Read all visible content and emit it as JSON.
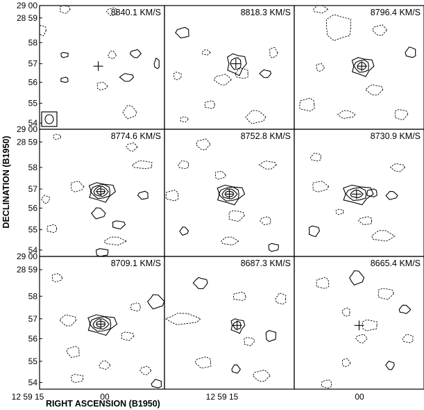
{
  "figure": {
    "ylabel": "DECLINATION (B1950)",
    "xlabel": "RIGHT ASCENSION (B1950)",
    "y_ticks": [
      "29 00",
      "28 59",
      "58",
      "57",
      "56",
      "55",
      "54"
    ],
    "x_ticks": [
      "12 59 15",
      "00",
      "12 59 15",
      "00"
    ],
    "panels": [
      {
        "velocity": "8840.1 KM/S",
        "beam": true
      },
      {
        "velocity": "8818.3 KM/S"
      },
      {
        "velocity": "8796.4 KM/S"
      },
      {
        "velocity": "8774.6 KM/S"
      },
      {
        "velocity": "8752.8 KM/S"
      },
      {
        "velocity": "8730.9 KM/S"
      },
      {
        "velocity": "8709.1 KM/S"
      },
      {
        "velocity": "8687.3 KM/S"
      },
      {
        "velocity": "8665.4 KM/S"
      }
    ]
  }
}
